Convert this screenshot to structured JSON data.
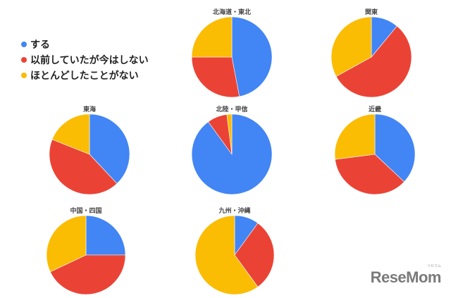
{
  "colors": {
    "suru": "#4285F4",
    "past": "#EA4335",
    "never": "#FBBC04"
  },
  "legend": [
    {
      "label": "する",
      "color": "#4285F4"
    },
    {
      "label": "以前していたが今はしない",
      "color": "#EA4335"
    },
    {
      "label": "ほとんどしたことがない",
      "color": "#FBBC04"
    }
  ],
  "watermark": {
    "text": "ReseMom",
    "ruby": "リセマム"
  },
  "chart_data": [
    {
      "type": "pie",
      "title": "北海道・東北",
      "categories": [
        "する",
        "以前していたが今はしない",
        "ほとんどしたことがない"
      ],
      "values": [
        47,
        28,
        25
      ]
    },
    {
      "type": "pie",
      "title": "関東",
      "categories": [
        "する",
        "以前していたが今はしない",
        "ほとんどしたことがない"
      ],
      "values": [
        11,
        56,
        33
      ]
    },
    {
      "type": "pie",
      "title": "東海",
      "categories": [
        "する",
        "以前していたが今はしない",
        "ほとんどしたことがない"
      ],
      "values": [
        38,
        43,
        19
      ]
    },
    {
      "type": "pie",
      "title": "北陸・甲信",
      "categories": [
        "する",
        "以前していたが今はしない",
        "ほとんどしたことがない"
      ],
      "values": [
        90,
        8,
        2
      ]
    },
    {
      "type": "pie",
      "title": "近畿",
      "categories": [
        "する",
        "以前していたが今はしない",
        "ほとんどしたことがない"
      ],
      "values": [
        37,
        36,
        27
      ]
    },
    {
      "type": "pie",
      "title": "中国・四国",
      "categories": [
        "する",
        "以前していたが今はしない",
        "ほとんどしたことがない"
      ],
      "values": [
        25,
        43,
        32
      ]
    },
    {
      "type": "pie",
      "title": "九州・沖縄",
      "categories": [
        "する",
        "以前していたが今はしない",
        "ほとんどしたことがない"
      ],
      "values": [
        10,
        30,
        60
      ]
    }
  ]
}
